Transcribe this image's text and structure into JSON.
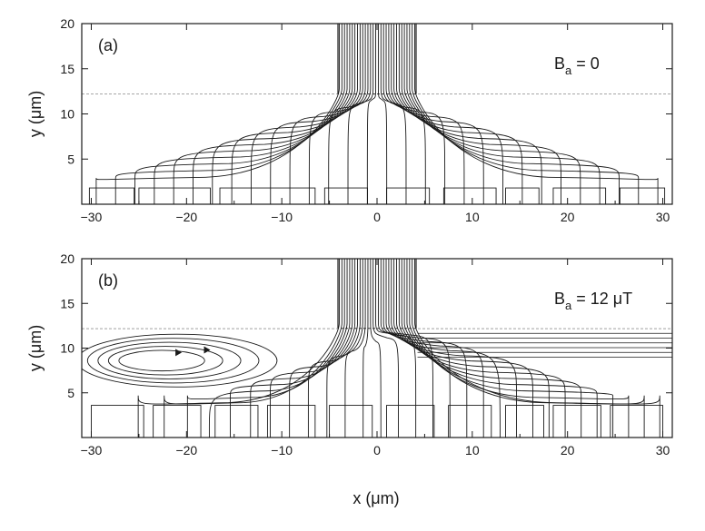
{
  "chart_data": [
    {
      "type": "contour",
      "panel_label": "(a)",
      "annotation": {
        "base": "B",
        "sub": "a",
        "rest": " = 0"
      },
      "ylabel": "y (μm)",
      "xlabel": "",
      "xlim": [
        -31,
        31
      ],
      "ylim": [
        0,
        20
      ],
      "xticks": [
        -30,
        -20,
        -10,
        0,
        10,
        20,
        30
      ],
      "yticks": [
        5,
        10,
        15,
        20
      ],
      "strip_top": 12.2,
      "neck_halfwidth": 4.1,
      "electrode_pads": [
        {
          "x0": -30.2,
          "x1": -25.5,
          "top": 1.8
        },
        {
          "x0": -25.0,
          "x1": -17.5,
          "top": 1.8
        },
        {
          "x0": -16.5,
          "x1": -6.5,
          "top": 1.8
        },
        {
          "x0": -5.5,
          "x1": -1.0,
          "top": 1.8
        },
        {
          "x0": 1.0,
          "x1": 5.5,
          "top": 1.8
        },
        {
          "x0": 7.0,
          "x1": 12.5,
          "top": 1.8
        },
        {
          "x0": 13.5,
          "x1": 17.0,
          "top": 1.8
        },
        {
          "x0": 18.5,
          "x1": 24.0,
          "top": 1.8
        },
        {
          "x0": 25.5,
          "x1": 30.2,
          "top": 1.8
        }
      ],
      "vortex": null,
      "skew": 0
    },
    {
      "type": "contour",
      "panel_label": "(b)",
      "annotation": {
        "base": "B",
        "sub": "a",
        "rest": " = 12 μT"
      },
      "ylabel": "y (μm)",
      "xlabel": "x (μm)",
      "xlim": [
        -31,
        31
      ],
      "ylim": [
        0,
        20
      ],
      "xticks": [
        -30,
        -20,
        -10,
        0,
        10,
        20,
        30
      ],
      "yticks": [
        5,
        10,
        15,
        20
      ],
      "strip_top": 12.2,
      "neck_halfwidth": 4.1,
      "electrode_pads": [
        {
          "x0": -30.0,
          "x1": -24.5,
          "top": 3.6
        },
        {
          "x0": -23.5,
          "x1": -18.5,
          "top": 3.6
        },
        {
          "x0": -17.0,
          "x1": -12.5,
          "top": 3.6
        },
        {
          "x0": -11.5,
          "x1": -6.5,
          "top": 3.6
        },
        {
          "x0": -5.0,
          "x1": -0.5,
          "top": 3.6
        },
        {
          "x0": 1.0,
          "x1": 6.0,
          "top": 3.6
        },
        {
          "x0": 7.5,
          "x1": 12.0,
          "top": 3.6
        },
        {
          "x0": 13.5,
          "x1": 17.5,
          "top": 3.6
        },
        {
          "x0": 18.5,
          "x1": 23.5,
          "top": 3.6
        },
        {
          "x0": 24.5,
          "x1": 30.0,
          "top": 3.6
        }
      ],
      "vortex": {
        "center": [
          -23,
          8.6
        ],
        "arrows_at_x": [
          -20.5,
          -17.5
        ]
      },
      "skew": 1
    }
  ],
  "colors": {
    "line": "#1a1a1a",
    "background": "#ffffff"
  }
}
